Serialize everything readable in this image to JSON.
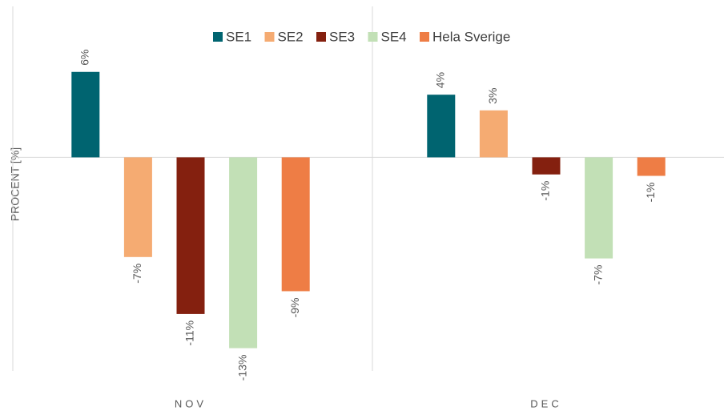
{
  "chart_data": {
    "type": "bar",
    "y_label": "PROCENT [%]",
    "categories": [
      "NOV",
      "DEC"
    ],
    "series": [
      {
        "name": "SE1",
        "color": "#006470",
        "values": [
          6.0,
          4.4
        ],
        "value_labels": [
          "6%",
          "4%"
        ]
      },
      {
        "name": "SE2",
        "color": "#f5ab72",
        "values": [
          -7.0,
          3.3
        ],
        "value_labels": [
          "-7%",
          "3%"
        ]
      },
      {
        "name": "SE3",
        "color": "#84200f",
        "values": [
          -11.0,
          -1.2
        ],
        "value_labels": [
          "-11%",
          "-1%"
        ]
      },
      {
        "name": "SE4",
        "color": "#c2e0b6",
        "values": [
          -13.4,
          -7.1
        ],
        "value_labels": [
          "-13%",
          "-7%"
        ]
      },
      {
        "name": "Hela Sverige",
        "color": "#ee7d45",
        "values": [
          -9.4,
          -1.3
        ],
        "value_labels": [
          "-9%",
          "-1%"
        ]
      }
    ],
    "ylim": [
      -15,
      10.6
    ],
    "legend": "top"
  }
}
